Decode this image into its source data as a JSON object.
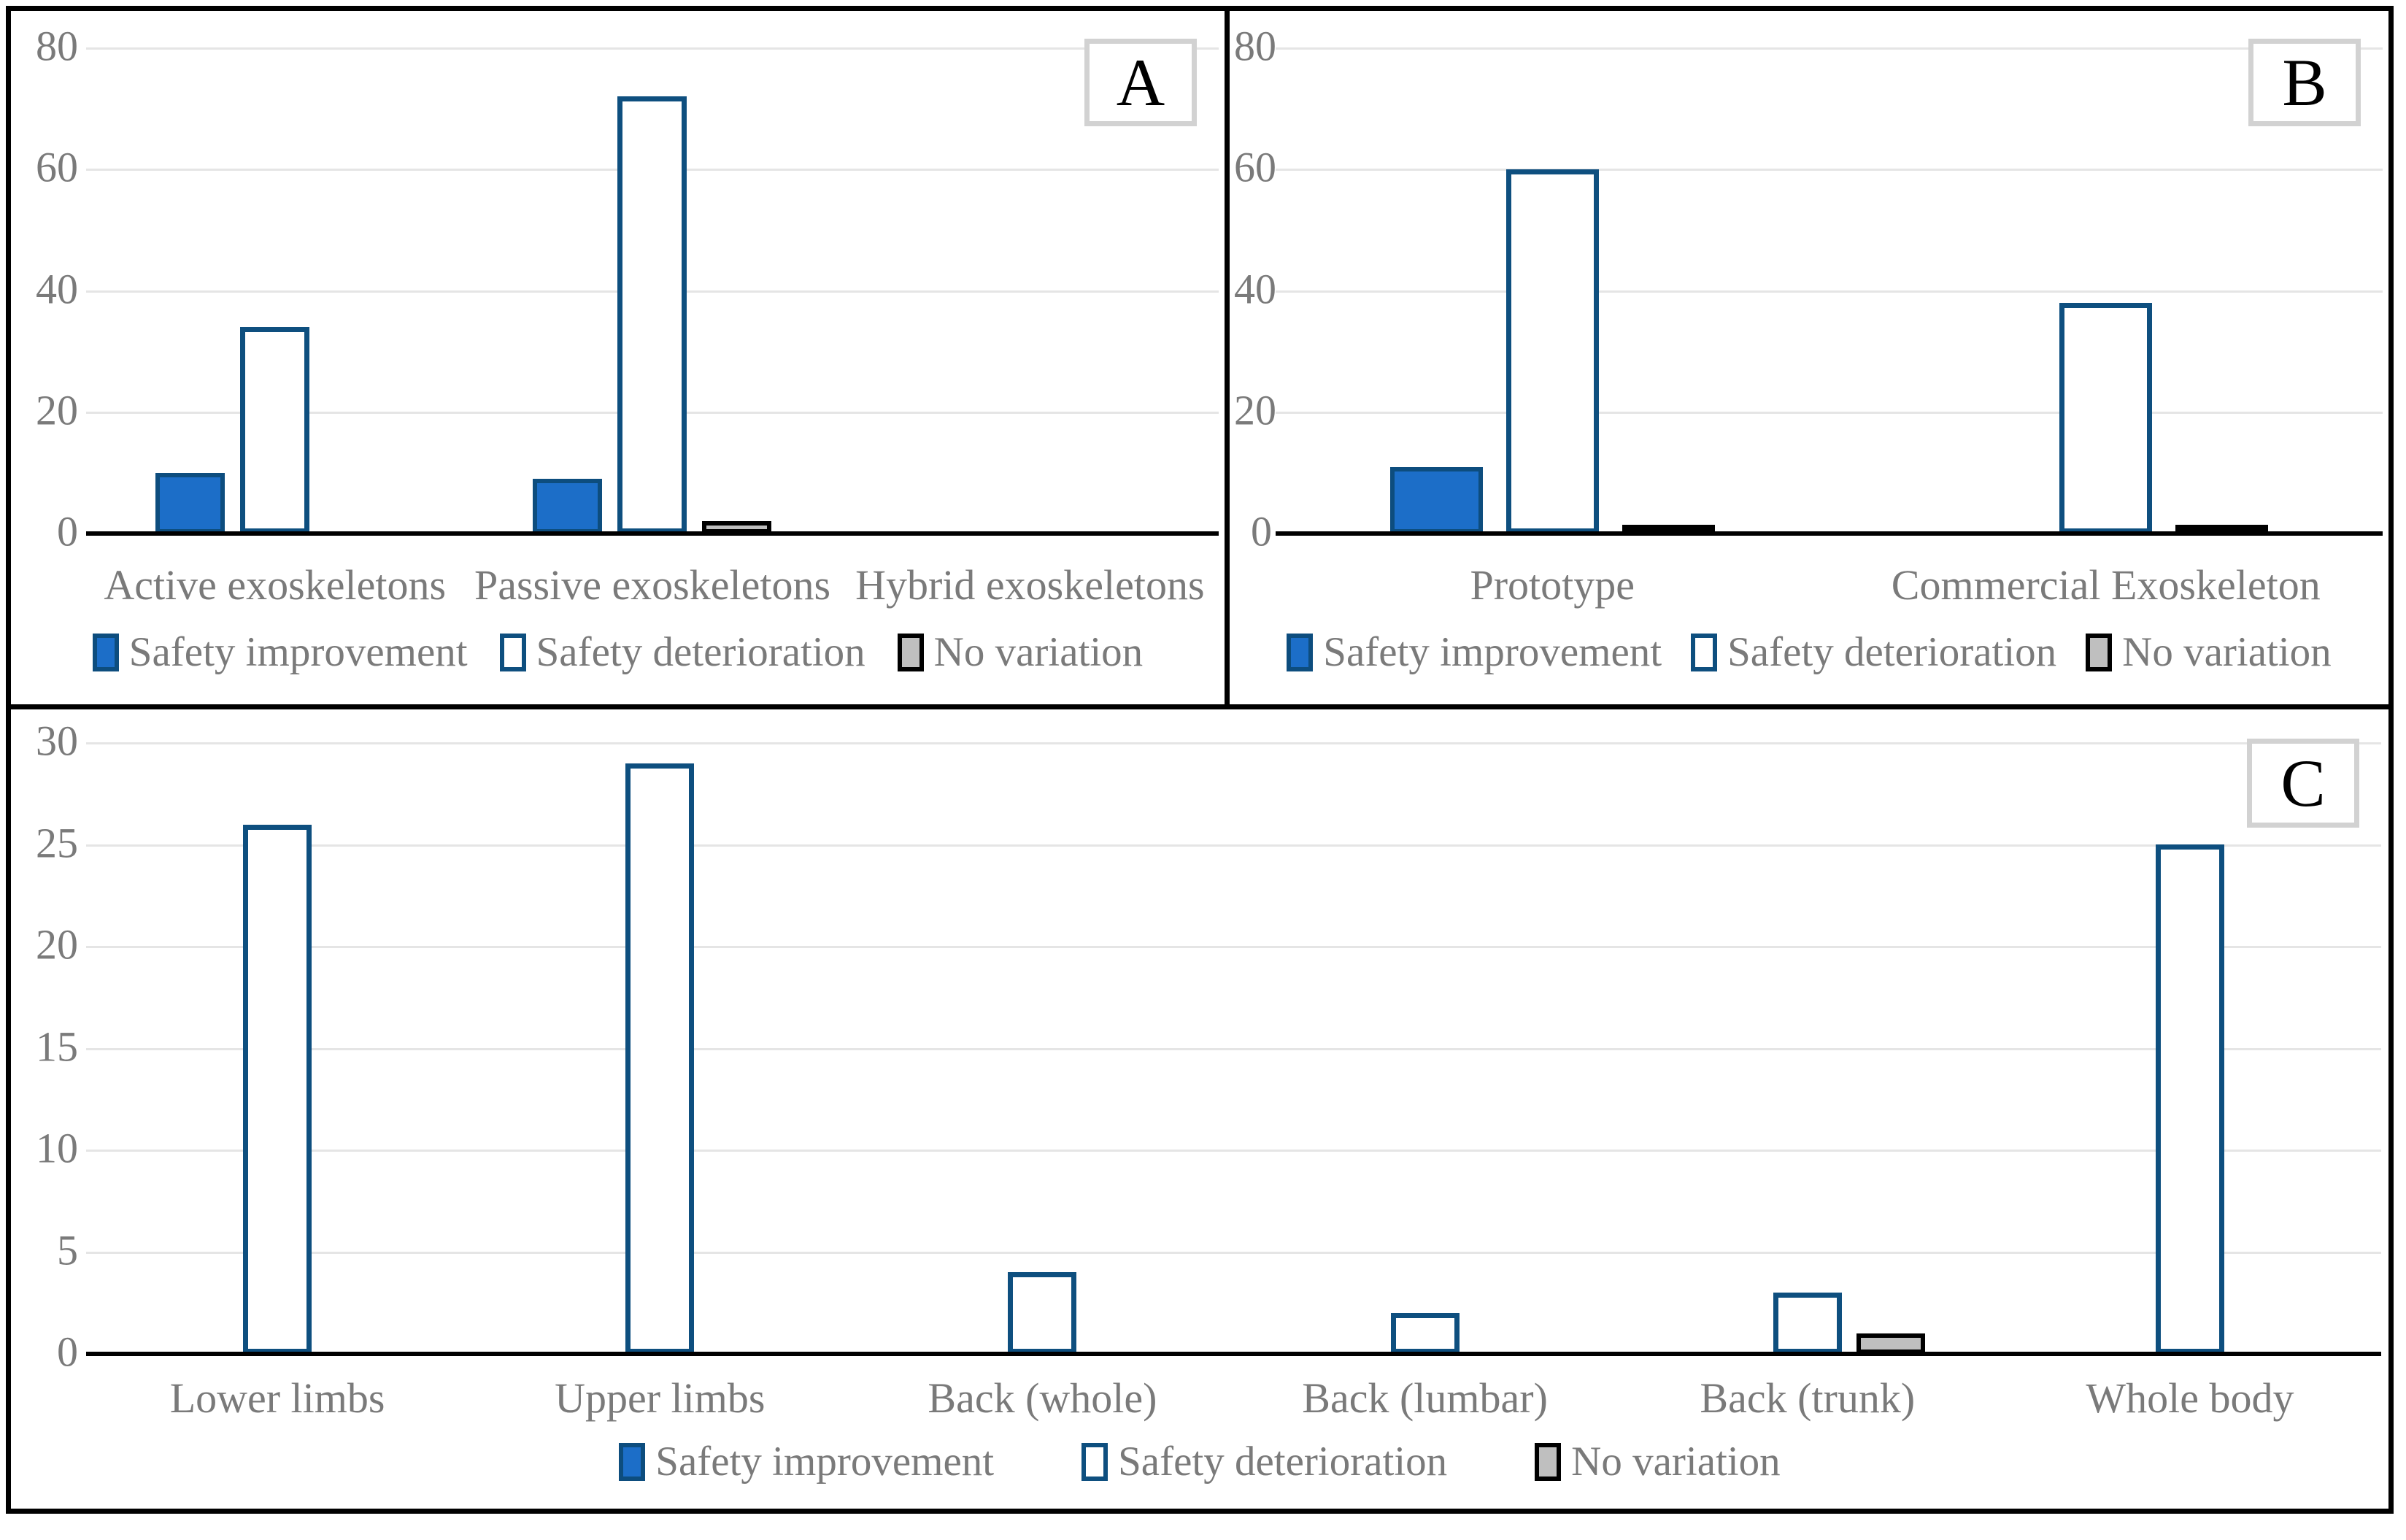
{
  "colors": {
    "improvement_fill": "#1C6EC8",
    "improvement_border": "#0D4D7E",
    "deterioration_fill": "#FFFFFF",
    "deterioration_border": "#0E4F7F",
    "novariation_fill": "#BFBFBF",
    "novariation_border": "#000000",
    "gridline": "#E5E5E5",
    "axis": "#000000",
    "text": "#7A7A7A",
    "frame": "#000000",
    "tag_border": "#D2D2D2"
  },
  "chart_data": [
    {
      "panel_label": "A",
      "type": "bar",
      "categories": [
        "Active exoskeletons",
        "Passive exoskeletons",
        "Hybrid exoskeletons"
      ],
      "series": [
        {
          "name": "Safety improvement",
          "style": "improvement",
          "values": [
            10,
            9,
            0
          ]
        },
        {
          "name": "Safety deterioration",
          "style": "deterioration",
          "values": [
            34,
            72,
            0
          ]
        },
        {
          "name": "No variation",
          "style": "novariation",
          "values": [
            0,
            2,
            0
          ]
        }
      ],
      "ylim": [
        0,
        80
      ],
      "yticks": [
        0,
        20,
        40,
        60,
        80
      ],
      "grid": true,
      "legend_position": "bottom"
    },
    {
      "panel_label": "B",
      "type": "bar",
      "categories": [
        "Prototype",
        "Commercial Exoskeleton"
      ],
      "series": [
        {
          "name": "Safety improvement",
          "style": "improvement",
          "values": [
            11,
            0
          ]
        },
        {
          "name": "Safety deterioration",
          "style": "deterioration",
          "values": [
            60,
            38
          ]
        },
        {
          "name": "No variation",
          "style": "novariation",
          "values": [
            1,
            1
          ]
        }
      ],
      "ylim": [
        0,
        80
      ],
      "yticks": [
        0,
        20,
        40,
        60,
        80
      ],
      "grid": true,
      "legend_position": "bottom"
    },
    {
      "panel_label": "C",
      "type": "bar",
      "categories": [
        "Lower limbs",
        "Upper limbs",
        "Back (whole)",
        "Back (lumbar)",
        "Back (trunk)",
        "Whole body"
      ],
      "series": [
        {
          "name": "Safety improvement",
          "style": "improvement",
          "values": [
            0,
            0,
            0,
            0,
            0,
            0
          ]
        },
        {
          "name": "Safety deterioration",
          "style": "deterioration",
          "values": [
            26,
            29,
            4,
            2,
            3,
            25
          ]
        },
        {
          "name": "No variation",
          "style": "novariation",
          "values": [
            0,
            0,
            0,
            0,
            1,
            0
          ]
        }
      ],
      "ylim": [
        0,
        30
      ],
      "yticks": [
        0,
        5,
        10,
        15,
        20,
        25,
        30
      ],
      "grid": true,
      "legend_position": "bottom"
    }
  ]
}
